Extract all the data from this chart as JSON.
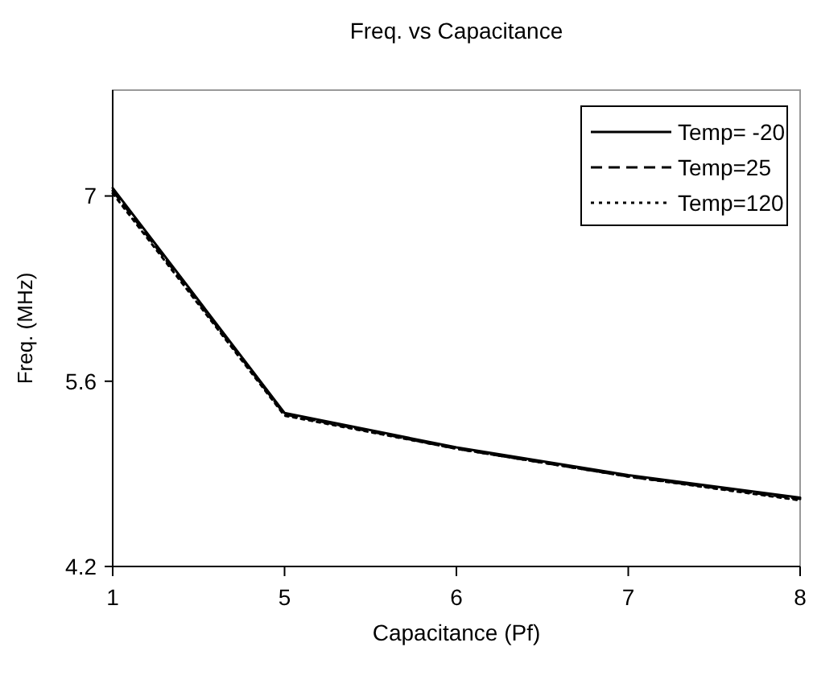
{
  "chart_data": {
    "type": "line",
    "title": "Freq. vs Capacitance",
    "xlabel": "Capacitance (Pf)",
    "ylabel": "Freq. (MHz)",
    "categories": [
      "1",
      "5",
      "6",
      "7",
      "8"
    ],
    "series": [
      {
        "name": "Temp= -20",
        "color": "#000000",
        "line_style": "solid",
        "values": [
          7.06,
          5.36,
          5.1,
          4.89,
          4.72
        ]
      },
      {
        "name": "Temp=25",
        "color": "#000000",
        "line_style": "dashed",
        "values": [
          7.04,
          5.35,
          5.09,
          4.88,
          4.71
        ]
      },
      {
        "name": "Temp=120",
        "color": "#000000",
        "line_style": "dotted",
        "values": [
          7.02,
          5.34,
          5.09,
          4.88,
          4.7
        ]
      }
    ],
    "ylim": [
      4.2,
      7.8
    ],
    "yticks": [
      4.2,
      5.6,
      7
    ],
    "legend": "top right",
    "grid": false,
    "marker": "none"
  }
}
